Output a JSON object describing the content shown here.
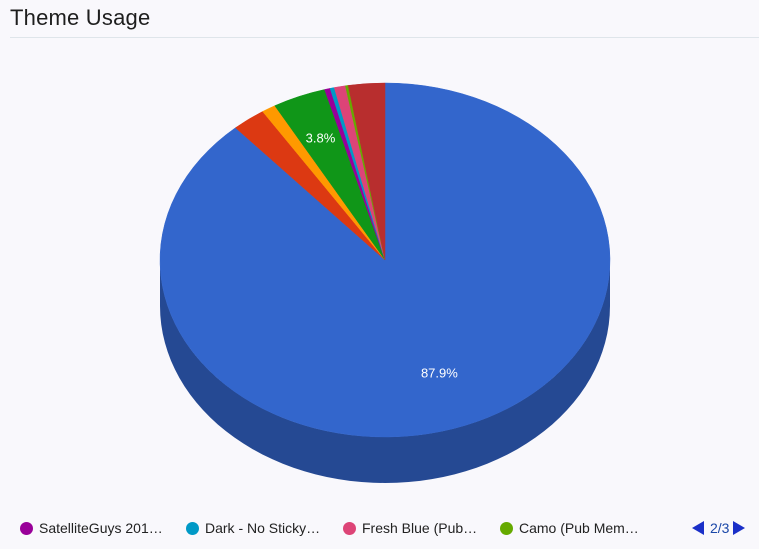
{
  "header": {
    "title": "Theme Usage"
  },
  "chart_data": {
    "type": "pie",
    "style": "3d",
    "title": "Theme Usage",
    "slices": [
      {
        "value": 87.9,
        "color": "#3366cc",
        "label": "87.9%"
      },
      {
        "value": 2.4,
        "color": "#dc3912"
      },
      {
        "value": 1.0,
        "color": "#ff9900"
      },
      {
        "value": 3.8,
        "color": "#109618",
        "label": "3.8%"
      },
      {
        "value": 0.4,
        "color": "#990099",
        "name": "SatelliteGuys 201…"
      },
      {
        "value": 0.3,
        "color": "#0099c6",
        "name": "Dark - No Sticky…"
      },
      {
        "value": 0.8,
        "color": "#dd4477",
        "name": "Fresh Blue (Pub…"
      },
      {
        "value": 0.2,
        "color": "#66aa00",
        "name": "Camo (Pub Mem…"
      },
      {
        "value": 2.6,
        "color": "#b82e2e"
      }
    ]
  },
  "legend": {
    "items": [
      {
        "label": "SatelliteGuys 201…",
        "color": "#990099"
      },
      {
        "label": "Dark - No Sticky…",
        "color": "#0099c6"
      },
      {
        "label": "Fresh Blue (Pub…",
        "color": "#dd4477"
      },
      {
        "label": "Camo (Pub Mem…",
        "color": "#66aa00"
      }
    ],
    "page": "2/3"
  }
}
